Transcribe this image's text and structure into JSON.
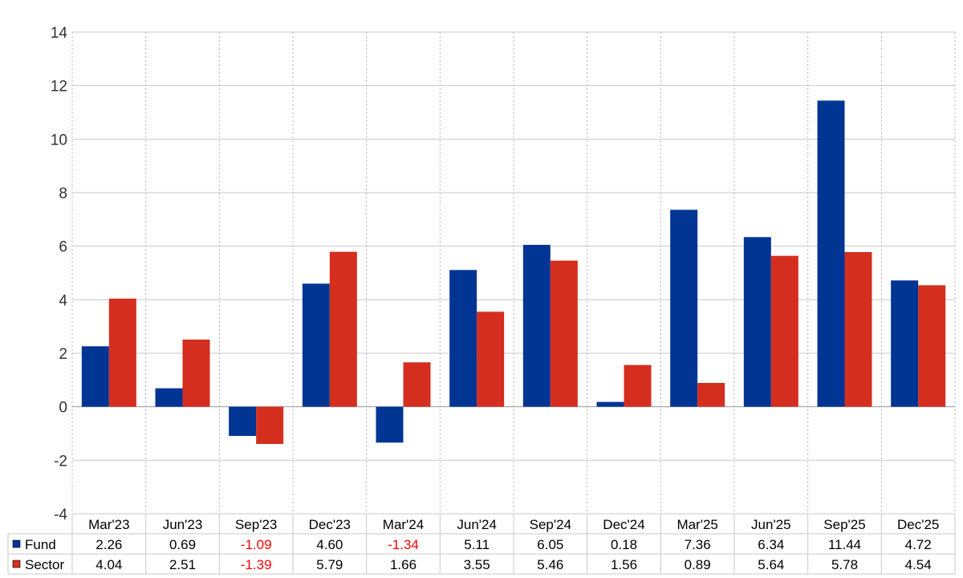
{
  "chart_data": {
    "type": "bar",
    "title": "",
    "xlabel": "",
    "ylabel": "",
    "ylim": [
      -4,
      14
    ],
    "yticks": [
      -4,
      -2,
      0,
      2,
      4,
      6,
      8,
      10,
      12,
      14
    ],
    "ytick_labels": [
      "-4",
      "-2",
      "0",
      "2",
      "4",
      "6",
      "8",
      "10",
      "12",
      "14"
    ],
    "grid": true,
    "legend": "bottom-left table",
    "categories": [
      "Mar'23",
      "Jun'23",
      "Sep'23",
      "Dec'23",
      "Mar'24",
      "Jun'24",
      "Sep'24",
      "Dec'24",
      "Mar'25",
      "Jun'25",
      "Sep'25",
      "Dec'25"
    ],
    "series": [
      {
        "name": "Fund",
        "color": "#003594",
        "values": [
          2.26,
          0.69,
          -1.09,
          4.6,
          -1.34,
          5.11,
          6.05,
          0.18,
          7.36,
          6.34,
          11.44,
          4.72
        ],
        "value_labels": [
          "2.26",
          "0.69",
          "-1.09",
          "4.60",
          "-1.34",
          "5.11",
          "6.05",
          "0.18",
          "7.36",
          "6.34",
          "11.44",
          "4.72"
        ]
      },
      {
        "name": "Sector",
        "color": "#d42e1f",
        "values": [
          4.04,
          2.51,
          -1.39,
          5.79,
          1.66,
          3.55,
          5.46,
          1.56,
          0.89,
          5.64,
          5.78,
          4.54
        ],
        "value_labels": [
          "4.04",
          "2.51",
          "-1.39",
          "5.79",
          "1.66",
          "3.55",
          "5.46",
          "1.56",
          "0.89",
          "5.64",
          "5.78",
          "4.54"
        ]
      }
    ],
    "negative_value_color": "#ff0000",
    "text_color": "#000000"
  }
}
